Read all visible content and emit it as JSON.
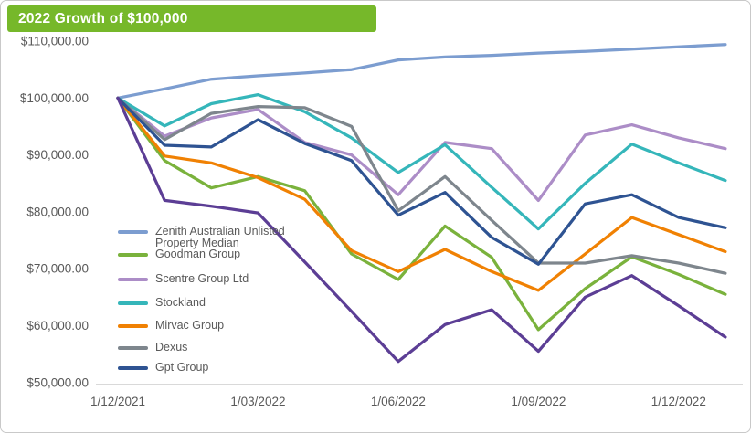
{
  "title": "2022 Growth of $100,000",
  "colors": {
    "title_bar_bg": "#76b82a",
    "title_text": "#ffffff",
    "axis_text": "#595959",
    "axis_line": "#d9d9d9",
    "card_border": "#c9c9c9"
  },
  "chart_data": {
    "type": "line",
    "title": "2022 Growth of $100,000",
    "x_tick_labels": [
      "1/12/2021",
      "1/03/2022",
      "1/06/2022",
      "1/09/2022",
      "1/12/2022"
    ],
    "x_tick_month_indices": [
      0,
      3,
      6,
      9,
      12
    ],
    "months_total": 14,
    "y_tick_labels": [
      "$110,000.00",
      "$100,000.00",
      "$90,000.00",
      "$80,000.00",
      "$70,000.00",
      "$60,000.00",
      "$50,000.00"
    ],
    "ylim": [
      50000,
      110000
    ],
    "grid": false,
    "legend_position": "middle-left",
    "series": [
      {
        "name": "Zenith Australian Unlisted Property Median",
        "color": "#7C9DD0",
        "in_legend": true,
        "values": [
          100000,
          101600,
          103300,
          103900,
          104400,
          105000,
          106700,
          107200,
          107500,
          107900,
          108200,
          108600,
          109000,
          109400
        ]
      },
      {
        "name": "Goodman Group",
        "color": "#7AB23C",
        "in_legend": true,
        "values": [
          100000,
          89000,
          84200,
          86200,
          83700,
          72600,
          68100,
          77500,
          72000,
          59300,
          66500,
          72100,
          69000,
          65500
        ]
      },
      {
        "name": "Scentre Group Ltd",
        "color": "#AC8DC7",
        "in_legend": true,
        "values": [
          100000,
          93300,
          96500,
          98000,
          92200,
          90000,
          83000,
          92200,
          91100,
          82000,
          93500,
          95300,
          93000,
          91100
        ]
      },
      {
        "name": "Stockland",
        "color": "#35B6BA",
        "in_legend": true,
        "values": [
          100000,
          95100,
          99000,
          100600,
          97600,
          93000,
          86900,
          91800,
          84300,
          77000,
          85000,
          91900,
          88600,
          85500
        ]
      },
      {
        "name": "Mirvac Group",
        "color": "#F08103",
        "in_legend": true,
        "values": [
          100000,
          89800,
          88600,
          86000,
          82200,
          73200,
          69500,
          73400,
          69500,
          66200,
          72600,
          79000,
          76000,
          73000
        ]
      },
      {
        "name": "Dexus",
        "color": "#7E868D",
        "in_legend": true,
        "values": [
          100000,
          92700,
          97300,
          98500,
          98300,
          95000,
          80200,
          86200,
          78500,
          71000,
          71000,
          72300,
          71000,
          69200
        ]
      },
      {
        "name": "Gpt Group",
        "color": "#2E5392",
        "in_legend": true,
        "values": [
          100000,
          91700,
          91400,
          96200,
          92000,
          89000,
          79400,
          83400,
          75500,
          70800,
          81400,
          83000,
          79000,
          77200
        ]
      },
      {
        "name": "",
        "color": "#5C3E95",
        "in_legend": false,
        "values": [
          100000,
          82000,
          81000,
          79800,
          71200,
          62500,
          53700,
          60200,
          62800,
          55500,
          65000,
          68800,
          63500,
          58000
        ]
      }
    ]
  }
}
